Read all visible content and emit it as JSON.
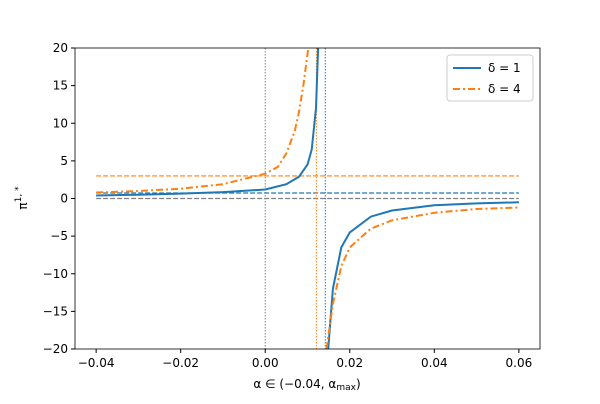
{
  "chart_data": {
    "type": "line",
    "title": "",
    "xlabel": "α ∈ (−0.04, α_max)",
    "xlabel_main": "α ∈ (−0.04, α",
    "xlabel_sub": "max",
    "xlabel_end": ")",
    "ylabel": "π",
    "ylabel_sup": "1, *",
    "xlim": [
      -0.045,
      0.065
    ],
    "ylim": [
      -20,
      20
    ],
    "xticks": [
      -0.04,
      -0.02,
      0.0,
      0.02,
      0.04,
      0.06
    ],
    "xtick_labels": [
      "−0.04",
      "−0.02",
      "0.00",
      "0.02",
      "0.04",
      "0.06"
    ],
    "yticks": [
      -20,
      -15,
      -10,
      -5,
      0,
      5,
      10,
      15,
      20
    ],
    "ytick_labels": [
      "−20",
      "−15",
      "−10",
      "−5",
      "0",
      "5",
      "10",
      "15",
      "20"
    ],
    "grid": false,
    "legend_position": "top-right",
    "series": [
      {
        "name": "δ = 1",
        "color": "#1f77b4",
        "style": "solid",
        "branches": [
          {
            "x": [
              -0.04,
              -0.03,
              -0.02,
              -0.01,
              0,
              0.005,
              0.008,
              0.01,
              0.011,
              0.012,
              0.0125
            ],
            "y": [
              0.4,
              0.5,
              0.65,
              0.85,
              1.2,
              1.9,
              2.9,
              4.5,
              6.5,
              12,
              20
            ]
          },
          {
            "x": [
              0.0149,
              0.016,
              0.018,
              0.02,
              0.025,
              0.03,
              0.04,
              0.05,
              0.06
            ],
            "y": [
              -20,
              -12,
              -6.5,
              -4.5,
              -2.4,
              -1.6,
              -0.9,
              -0.65,
              -0.5
            ]
          }
        ],
        "asymptote_x": 0.0142,
        "asymptote_y": 0.73
      },
      {
        "name": "δ = 4",
        "color": "#ff7f0e",
        "style": "dashdot",
        "branches": [
          {
            "x": [
              -0.04,
              -0.03,
              -0.02,
              -0.01,
              0,
              0.003,
              0.005,
              0.007,
              0.008,
              0.009,
              0.0102
            ],
            "y": [
              0.8,
              1.0,
              1.3,
              1.9,
              3.3,
              4.2,
              6,
              9,
              11.5,
              15,
              20
            ]
          },
          {
            "x": [
              0.0145,
              0.016,
              0.018,
              0.02,
              0.025,
              0.03,
              0.04,
              0.05,
              0.06
            ],
            "y": [
              -20,
              -14,
              -9,
              -6.5,
              -4,
              -2.9,
              -1.9,
              -1.4,
              -1.2
            ]
          }
        ],
        "asymptote_x": 0.0121,
        "asymptote_y": 3.0
      }
    ],
    "reference_lines": {
      "zero_y": 0,
      "zero_x": 0,
      "color": "#808080"
    },
    "legend": [
      "δ = 1",
      "δ = 4"
    ]
  }
}
